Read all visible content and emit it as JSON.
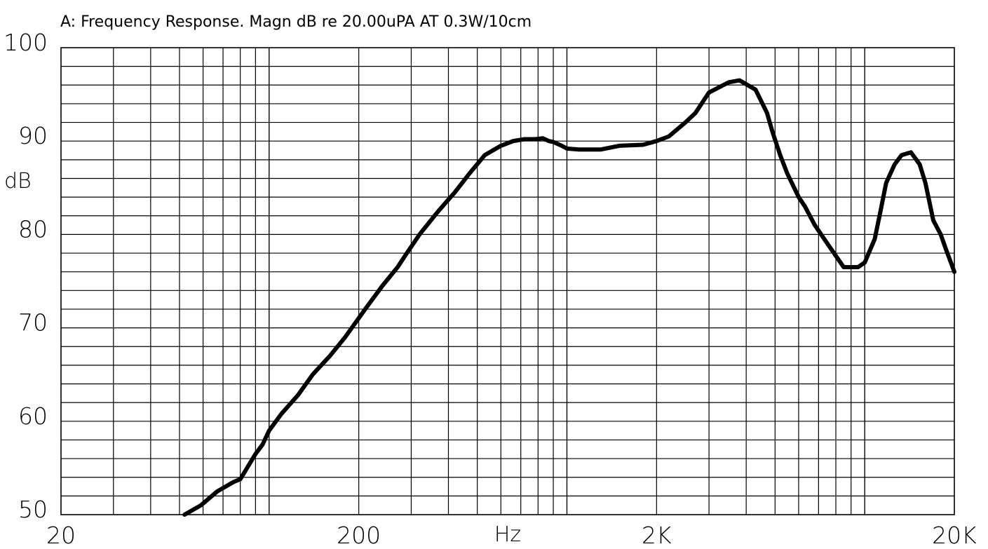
{
  "chart_data": {
    "type": "line",
    "title": "A: Frequency Response. Magn dB re 20.00uPA  AT 0.3W/10cm",
    "xlabel": "Hz",
    "ylabel": "dB",
    "xscale": "log",
    "xlim": [
      20,
      20000
    ],
    "ylim": [
      50,
      100
    ],
    "grid": true,
    "x_ticks": [
      {
        "value": 20,
        "label": "20"
      },
      {
        "value": 200,
        "label": "200"
      },
      {
        "value": 2000,
        "label": "2K"
      },
      {
        "value": 20000,
        "label": "20K"
      }
    ],
    "y_ticks": [
      {
        "value": 100,
        "label": "100"
      },
      {
        "value": 90,
        "label": "90"
      },
      {
        "value": 80,
        "label": "80"
      },
      {
        "value": 70,
        "label": "70"
      },
      {
        "value": 60,
        "label": "60"
      },
      {
        "value": 50,
        "label": "50"
      }
    ],
    "series": [
      {
        "x": [
          52,
          59,
          67,
          76,
          80,
          90,
          95,
          100,
          110,
          125,
          140,
          160,
          180,
          210,
          240,
          270,
          290,
          320,
          370,
          420,
          470,
          530,
          600,
          660,
          720,
          780,
          830,
          870,
          900,
          960,
          1000,
          1100,
          1200,
          1300,
          1500,
          1800,
          2000,
          2200,
          2500,
          2700,
          3000,
          3500,
          3800,
          4300,
          4700,
          4900,
          5200,
          5500,
          6000,
          6300,
          6800,
          7500,
          8500,
          9500,
          10000,
          10800,
          11300,
          11800,
          12600,
          13300,
          14300,
          15300,
          16000,
          17000,
          18000,
          18700,
          20000
        ],
        "y": [
          50,
          51,
          52.5,
          53.5,
          53.8,
          56.5,
          57.5,
          59,
          60.8,
          62.8,
          65,
          67,
          69,
          72,
          74.5,
          76.5,
          78,
          80,
          82.5,
          84.5,
          86.5,
          88.5,
          89.5,
          90,
          90.2,
          90.2,
          90.3,
          90,
          89.9,
          89.5,
          89.2,
          89.1,
          89.1,
          89.1,
          89.5,
          89.6,
          90,
          90.5,
          92,
          93,
          95.2,
          96.3,
          96.5,
          95.5,
          93,
          91,
          88.5,
          86.5,
          84,
          83,
          81,
          79,
          76.5,
          76.5,
          77,
          79.5,
          82.5,
          85.5,
          87.5,
          88.5,
          88.8,
          87.5,
          85.5,
          81.5,
          80,
          78.5,
          76
        ]
      }
    ]
  }
}
